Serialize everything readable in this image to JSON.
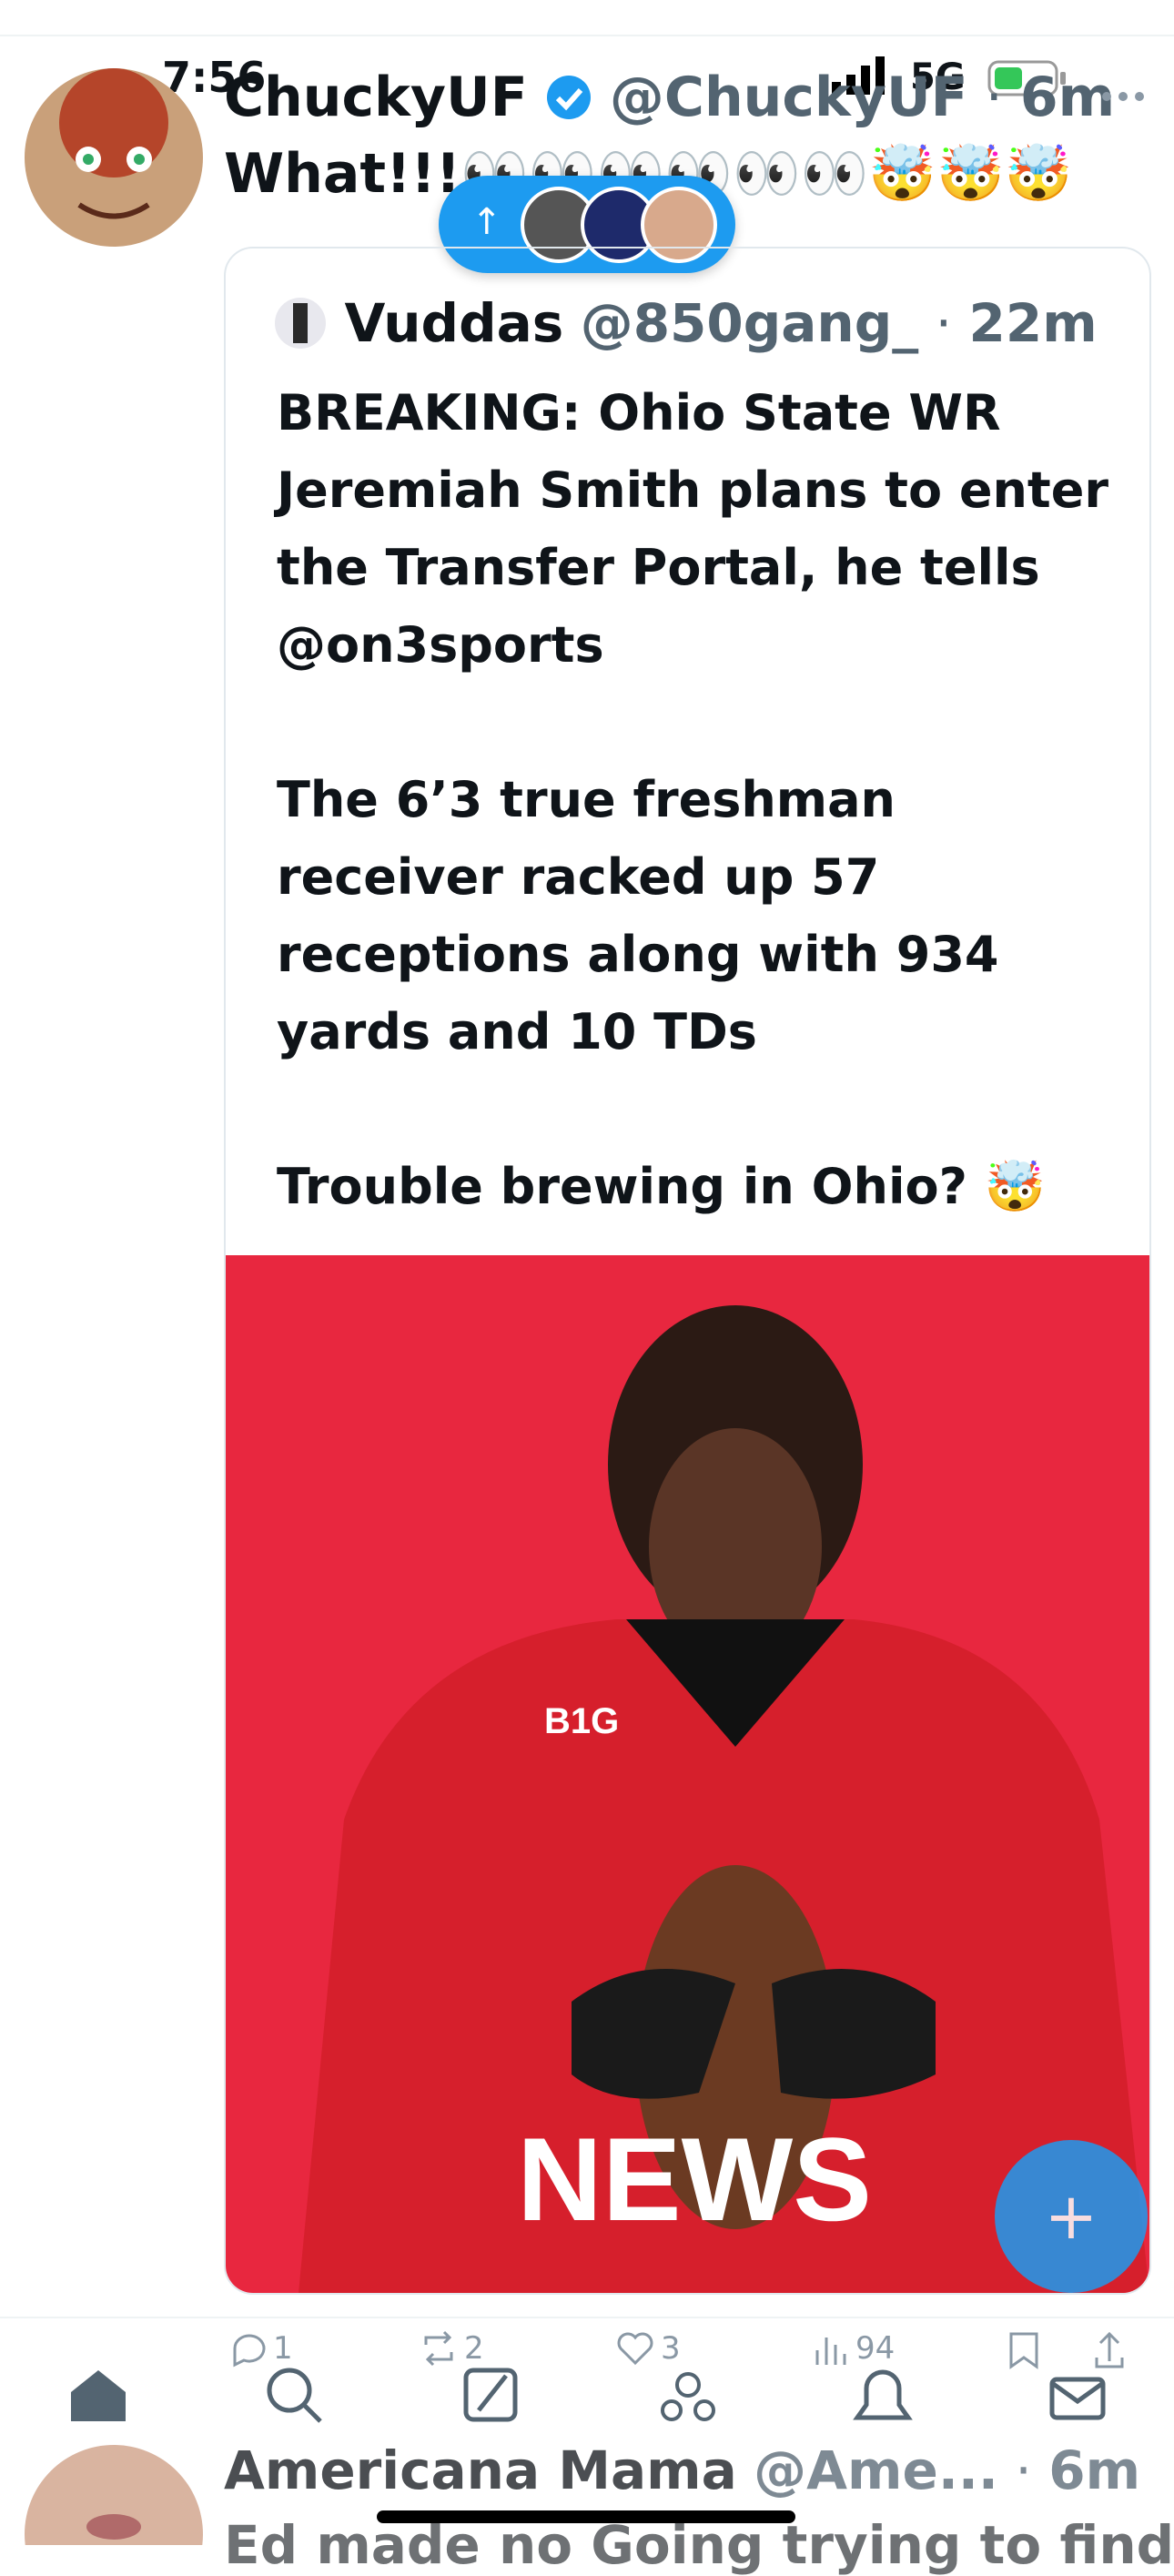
{
  "status_bar": {
    "time": "7:56",
    "network": "5G"
  },
  "new_posts_button": {
    "icon": "↑"
  },
  "tweet": {
    "name": "ChuckyUF",
    "handle": "@ChuckyUF",
    "separator": "·",
    "time": "6m",
    "text": "What!!!👀👀👀👀👀👀🤯🤯🤯",
    "quote": {
      "name": "Vuddas",
      "handle": "@850gang_",
      "separator": "·",
      "time": "22m",
      "paragraphs": [
        "BREAKING: Ohio State WR Jeremiah Smith plans to enter the Transfer Portal, he tells @on3sports",
        "The 6’3 true freshman receiver racked up 57 receptions along with 934 yards and 10 TDs",
        "Trouble brewing in Ohio? 🤯"
      ],
      "image": {
        "jersey_text": "B1G",
        "banner": "NEWS"
      }
    },
    "actions": {
      "replies": 1,
      "reposts": 2,
      "likes": 3,
      "views": 94
    }
  },
  "fab": {
    "icon": "+"
  },
  "next_tweet": {
    "name": "Americana Mama",
    "handle": "@Ame...",
    "separator": "·",
    "time": "6m",
    "text": "Ed made no Going trying to find"
  }
}
